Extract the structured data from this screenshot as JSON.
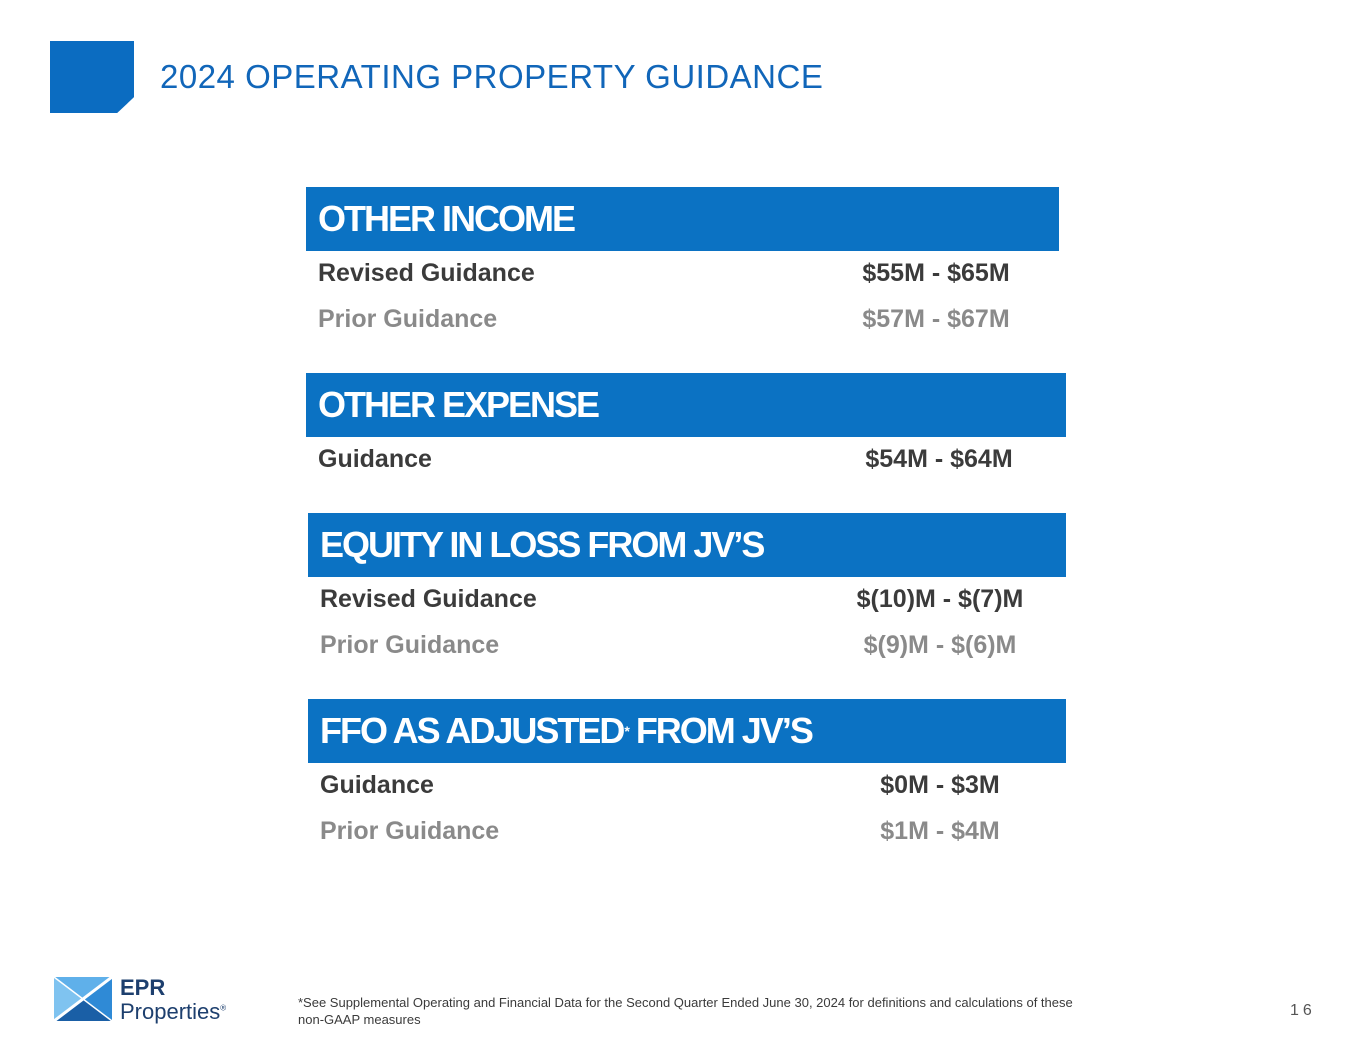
{
  "page_title": "2024 OPERATING PROPERTY GUIDANCE",
  "sections": [
    {
      "header": "OTHER INCOME",
      "rows": [
        {
          "label": "Revised Guidance",
          "value": "$55M - $65M"
        },
        {
          "label": "Prior Guidance",
          "value": "$57M - $67M"
        }
      ]
    },
    {
      "header": "OTHER EXPENSE",
      "rows": [
        {
          "label": "Guidance",
          "value": "$54M - $64M"
        }
      ]
    },
    {
      "header": "EQUITY IN LOSS FROM JV’S",
      "rows": [
        {
          "label": "Revised Guidance",
          "value": "$(10)M - $(7)M"
        },
        {
          "label": "Prior Guidance",
          "value": "$(9)M - $(6)M"
        }
      ]
    },
    {
      "header_main": "FFO AS ADJUSTED",
      "header_sup": "*",
      "header_tail": " FROM JV’S",
      "rows": [
        {
          "label": "Guidance",
          "value": "$0M - $3M"
        },
        {
          "label": "Prior Guidance",
          "value": "$1M - $4M"
        }
      ]
    }
  ],
  "footer": {
    "logo_top": "EPR",
    "logo_bottom": "Properties",
    "logo_reg": "®",
    "footnote": "*See Supplemental Operating and Financial Data for the Second Quarter Ended June 30, 2024 for definitions and calculations of these non-GAAP measures",
    "page_number": "16"
  },
  "colors": {
    "accent_blue": "#0b72c3",
    "title_blue": "#1166b9",
    "primary_text": "#3b3b3b",
    "secondary_text": "#8a8a8a"
  }
}
